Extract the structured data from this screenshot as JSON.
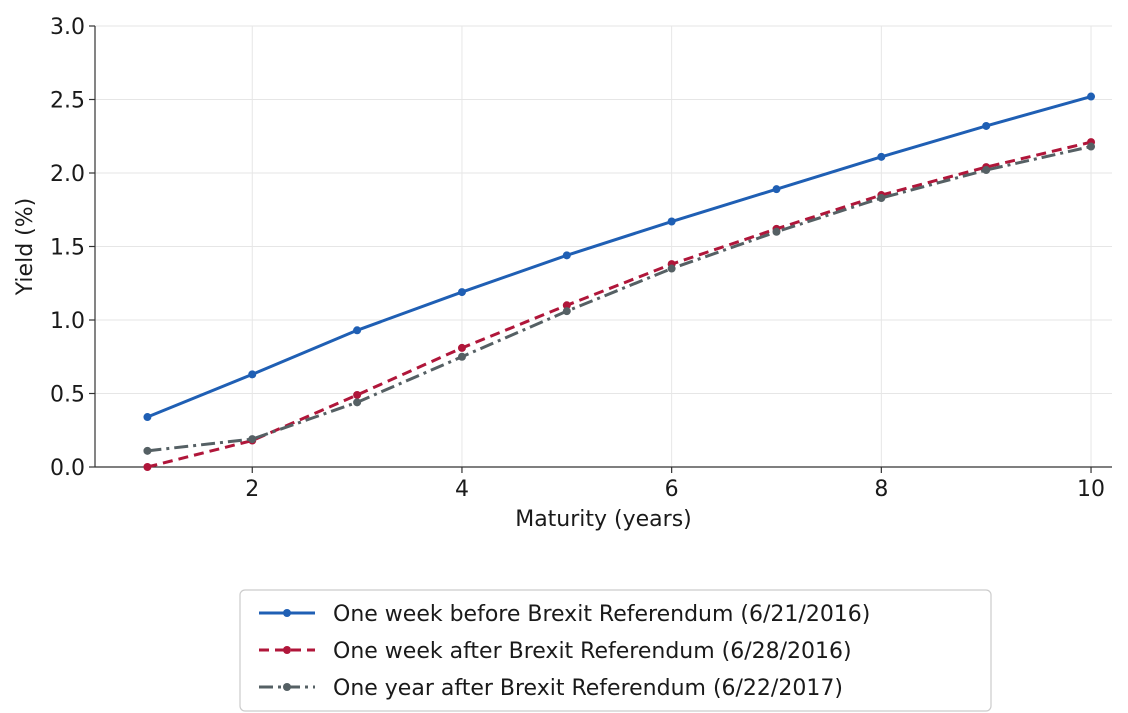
{
  "chart_data": {
    "type": "line",
    "xlabel": "Maturity (years)",
    "ylabel": "Yield (%)",
    "xlim": [
      0.5,
      10.2
    ],
    "ylim": [
      0,
      3.0
    ],
    "xticks": [
      2,
      4,
      6,
      8,
      10
    ],
    "yticks": [
      0.0,
      0.5,
      1.0,
      1.5,
      2.0,
      2.5,
      3.0
    ],
    "ytick_labels": [
      "0.0",
      "0.5",
      "1.0",
      "1.5",
      "2.0",
      "2.5",
      "3.0"
    ],
    "xtick_labels": [
      "2",
      "4",
      "6",
      "8",
      "10"
    ],
    "grid": true,
    "legend_position": "bottom-center",
    "x": [
      1,
      2,
      3,
      4,
      5,
      6,
      7,
      8,
      9,
      10
    ],
    "series": [
      {
        "name": "One week before Brexit Referendum (6/21/2016)",
        "values": [
          0.34,
          0.63,
          0.93,
          1.19,
          1.44,
          1.67,
          1.89,
          2.11,
          2.32,
          2.52
        ],
        "color": "#1f5fb4",
        "style": "solid"
      },
      {
        "name": "One week after Brexit Referendum (6/28/2016)",
        "values": [
          0.0,
          0.18,
          0.49,
          0.81,
          1.1,
          1.38,
          1.62,
          1.85,
          2.04,
          2.21
        ],
        "color": "#b0163a",
        "style": "dashed"
      },
      {
        "name": "One year after Brexit Referendum (6/22/2017)",
        "values": [
          0.11,
          0.19,
          0.44,
          0.75,
          1.06,
          1.35,
          1.6,
          1.83,
          2.02,
          2.18
        ],
        "color": "#556064",
        "style": "dashdot"
      }
    ]
  }
}
